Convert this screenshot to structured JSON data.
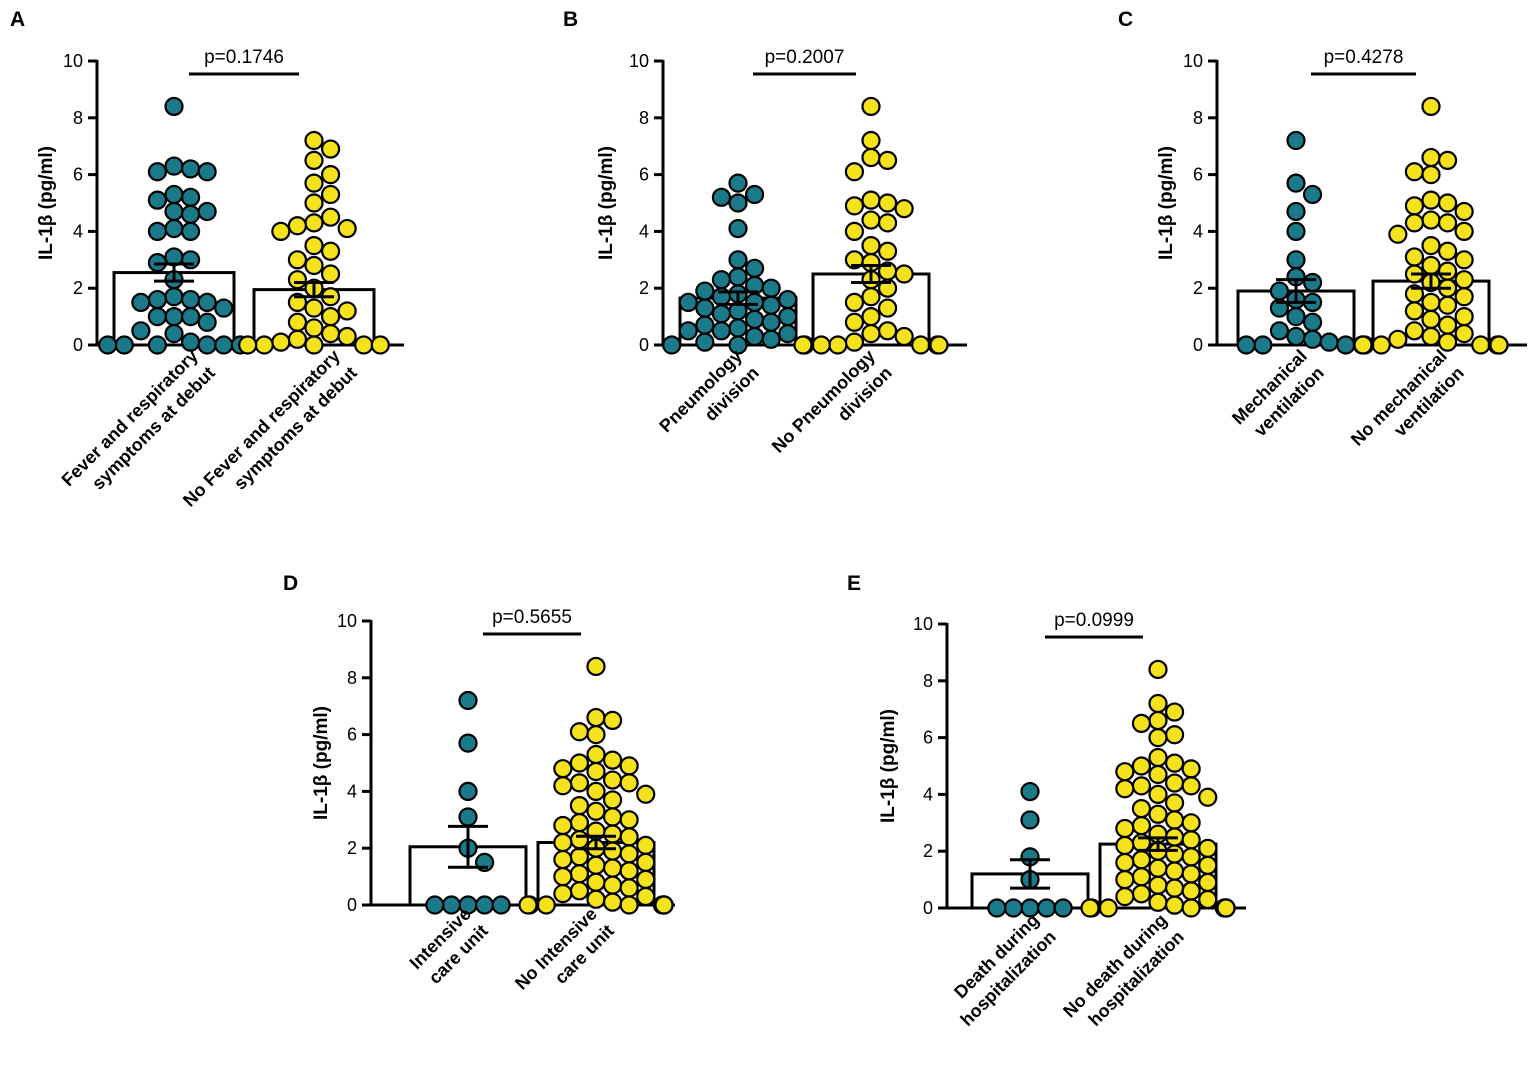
{
  "figure": {
    "ylabel": "IL-1β (pg/ml)"
  },
  "colors": {
    "teal": "#1b7a8a",
    "yellow": "#f4e31c",
    "outline": "#000000"
  },
  "chart_data": [
    {
      "panel": "A",
      "type": "scatter",
      "ylabel": "IL-1β (pg/ml)",
      "ylim": [
        0,
        10
      ],
      "yticks": [
        0,
        2,
        4,
        6,
        8,
        10
      ],
      "pvalue": "p=0.1746",
      "groups": [
        {
          "label_lines": [
            "Fever and respiratory",
            "symptoms at debut"
          ],
          "color": "teal",
          "mean": 2.55,
          "sem": 0.3,
          "values": [
            8.4,
            6.3,
            6.2,
            6.1,
            6.1,
            5.3,
            5.2,
            5.1,
            4.7,
            4.6,
            4.7,
            4.0,
            4.0,
            4.1,
            3.1,
            2.9,
            3.0,
            2.3,
            1.7,
            1.6,
            1.6,
            1.5,
            1.5,
            1.3,
            1.0,
            1.0,
            1.0,
            0.8,
            0.5,
            0.4,
            0.1,
            0.0,
            0.0,
            0.0,
            0.0,
            0.0,
            0.0
          ]
        },
        {
          "label_lines": [
            "No Fever and respiratory",
            "symptoms at debut"
          ],
          "color": "yellow",
          "mean": 1.95,
          "sem": 0.25,
          "values": [
            7.2,
            6.9,
            6.5,
            6.0,
            5.7,
            5.3,
            5.0,
            4.5,
            4.3,
            4.2,
            4.1,
            4.0,
            3.5,
            3.3,
            3.0,
            2.8,
            2.5,
            2.3,
            2.0,
            1.7,
            1.5,
            1.3,
            1.2,
            1.0,
            0.8,
            0.6,
            0.4,
            0.3,
            0.2,
            0.1,
            0.0,
            0.0,
            0.0,
            0.0,
            0.0
          ]
        }
      ]
    },
    {
      "panel": "B",
      "type": "scatter",
      "ylabel": "IL-1β (pg/ml)",
      "ylim": [
        0,
        10
      ],
      "yticks": [
        0,
        2,
        4,
        6,
        8,
        10
      ],
      "pvalue": "p=0.2007",
      "groups": [
        {
          "label_lines": [
            "Pneumology",
            "division"
          ],
          "color": "teal",
          "mean": 1.65,
          "sem": 0.22,
          "values": [
            5.7,
            5.3,
            5.2,
            5.0,
            4.1,
            3.0,
            2.7,
            2.4,
            2.3,
            2.1,
            2.0,
            1.9,
            1.8,
            1.7,
            1.6,
            1.5,
            1.5,
            1.4,
            1.3,
            1.2,
            1.1,
            1.0,
            0.9,
            0.8,
            0.7,
            0.6,
            0.5,
            0.5,
            0.4,
            0.3,
            0.2,
            0.1,
            0.0,
            0.0,
            0.0
          ]
        },
        {
          "label_lines": [
            "No Pneumology",
            "division"
          ],
          "color": "yellow",
          "mean": 2.5,
          "sem": 0.3,
          "values": [
            8.4,
            7.2,
            6.6,
            6.5,
            6.1,
            5.1,
            5.0,
            4.9,
            4.8,
            4.4,
            4.3,
            4.0,
            3.5,
            3.3,
            3.0,
            2.9,
            2.6,
            2.5,
            2.3,
            2.0,
            1.7,
            1.5,
            1.3,
            1.0,
            0.8,
            0.5,
            0.4,
            0.3,
            0.1,
            0.0,
            0.0,
            0.0,
            0.0,
            0.0,
            0.0,
            0.0
          ]
        }
      ]
    },
    {
      "panel": "C",
      "type": "scatter",
      "ylabel": "IL-1β (pg/ml)",
      "ylim": [
        0,
        10
      ],
      "yticks": [
        0,
        2,
        4,
        6,
        8,
        10
      ],
      "pvalue": "p=0.4278",
      "groups": [
        {
          "label_lines": [
            "Mechanical",
            "ventilation"
          ],
          "color": "teal",
          "mean": 1.9,
          "sem": 0.4,
          "values": [
            7.2,
            5.7,
            5.3,
            4.7,
            4.0,
            3.0,
            2.4,
            2.2,
            1.9,
            1.6,
            1.5,
            1.3,
            1.0,
            0.8,
            0.5,
            0.3,
            0.2,
            0.1,
            0.0,
            0.0,
            0.0,
            0.0
          ]
        },
        {
          "label_lines": [
            "No mechanical",
            "ventilation"
          ],
          "color": "yellow",
          "mean": 2.25,
          "sem": 0.25,
          "values": [
            8.4,
            6.6,
            6.5,
            6.1,
            6.0,
            5.1,
            5.0,
            4.9,
            4.7,
            4.4,
            4.3,
            4.3,
            4.0,
            3.9,
            3.5,
            3.3,
            3.1,
            3.0,
            2.8,
            2.6,
            2.5,
            2.3,
            2.2,
            2.0,
            1.8,
            1.7,
            1.5,
            1.4,
            1.2,
            1.0,
            0.9,
            0.7,
            0.5,
            0.4,
            0.3,
            0.2,
            0.1,
            0.0,
            0.0,
            0.0,
            0.0,
            0.0,
            0.0,
            0.0,
            0.0
          ]
        }
      ]
    },
    {
      "panel": "D",
      "type": "scatter",
      "ylabel": "IL-1β (pg/ml)",
      "ylim": [
        0,
        10
      ],
      "yticks": [
        0,
        2,
        4,
        6,
        8,
        10
      ],
      "pvalue": "p=0.5655",
      "groups": [
        {
          "label_lines": [
            "Intensive",
            "care unit"
          ],
          "color": "teal",
          "mean": 2.05,
          "sem": 0.72,
          "values": [
            7.2,
            5.7,
            4.0,
            3.1,
            2.0,
            1.5,
            0.0,
            0.0,
            0.0,
            0.0,
            0.0
          ]
        },
        {
          "label_lines": [
            "No Intensive",
            "care unit"
          ],
          "color": "yellow",
          "mean": 2.2,
          "sem": 0.22,
          "values": [
            8.4,
            6.6,
            6.5,
            6.1,
            6.0,
            5.3,
            5.1,
            5.0,
            4.9,
            4.8,
            4.7,
            4.4,
            4.3,
            4.3,
            4.2,
            4.0,
            3.9,
            3.7,
            3.5,
            3.3,
            3.1,
            3.0,
            2.9,
            2.8,
            2.6,
            2.5,
            2.4,
            2.3,
            2.2,
            2.1,
            2.0,
            1.9,
            1.8,
            1.7,
            1.6,
            1.5,
            1.4,
            1.3,
            1.2,
            1.1,
            1.0,
            0.9,
            0.8,
            0.7,
            0.6,
            0.5,
            0.4,
            0.3,
            0.2,
            0.1,
            0.0,
            0.0,
            0.0,
            0.0,
            0.0,
            0.0,
            0.0,
            0.0,
            0.0,
            0.0
          ]
        }
      ]
    },
    {
      "panel": "E",
      "type": "scatter",
      "ylabel": "IL-1β (pg/ml)",
      "ylim": [
        0,
        10
      ],
      "yticks": [
        0,
        2,
        4,
        6,
        8,
        10
      ],
      "pvalue": "p=0.0999",
      "groups": [
        {
          "label_lines": [
            "Death during",
            "hospitalization"
          ],
          "color": "teal",
          "mean": 1.2,
          "sem": 0.5,
          "values": [
            4.1,
            3.1,
            1.8,
            1.0,
            0.0,
            0.0,
            0.0,
            0.0,
            0.0
          ]
        },
        {
          "label_lines": [
            "No death during",
            "hospitalization"
          ],
          "color": "yellow",
          "mean": 2.25,
          "sem": 0.22,
          "values": [
            8.4,
            7.2,
            6.9,
            6.6,
            6.5,
            6.1,
            6.0,
            5.3,
            5.1,
            5.0,
            4.9,
            4.8,
            4.7,
            4.4,
            4.3,
            4.3,
            4.2,
            4.0,
            3.9,
            3.7,
            3.5,
            3.3,
            3.1,
            3.0,
            2.9,
            2.8,
            2.6,
            2.5,
            2.4,
            2.3,
            2.2,
            2.1,
            2.0,
            1.9,
            1.8,
            1.7,
            1.6,
            1.5,
            1.4,
            1.3,
            1.2,
            1.1,
            1.0,
            0.9,
            0.8,
            0.7,
            0.6,
            0.5,
            0.4,
            0.3,
            0.2,
            0.1,
            0.0,
            0.0,
            0.0,
            0.0,
            0.0,
            0.0,
            0.0,
            0.0,
            0.0,
            0.0
          ]
        }
      ]
    }
  ]
}
